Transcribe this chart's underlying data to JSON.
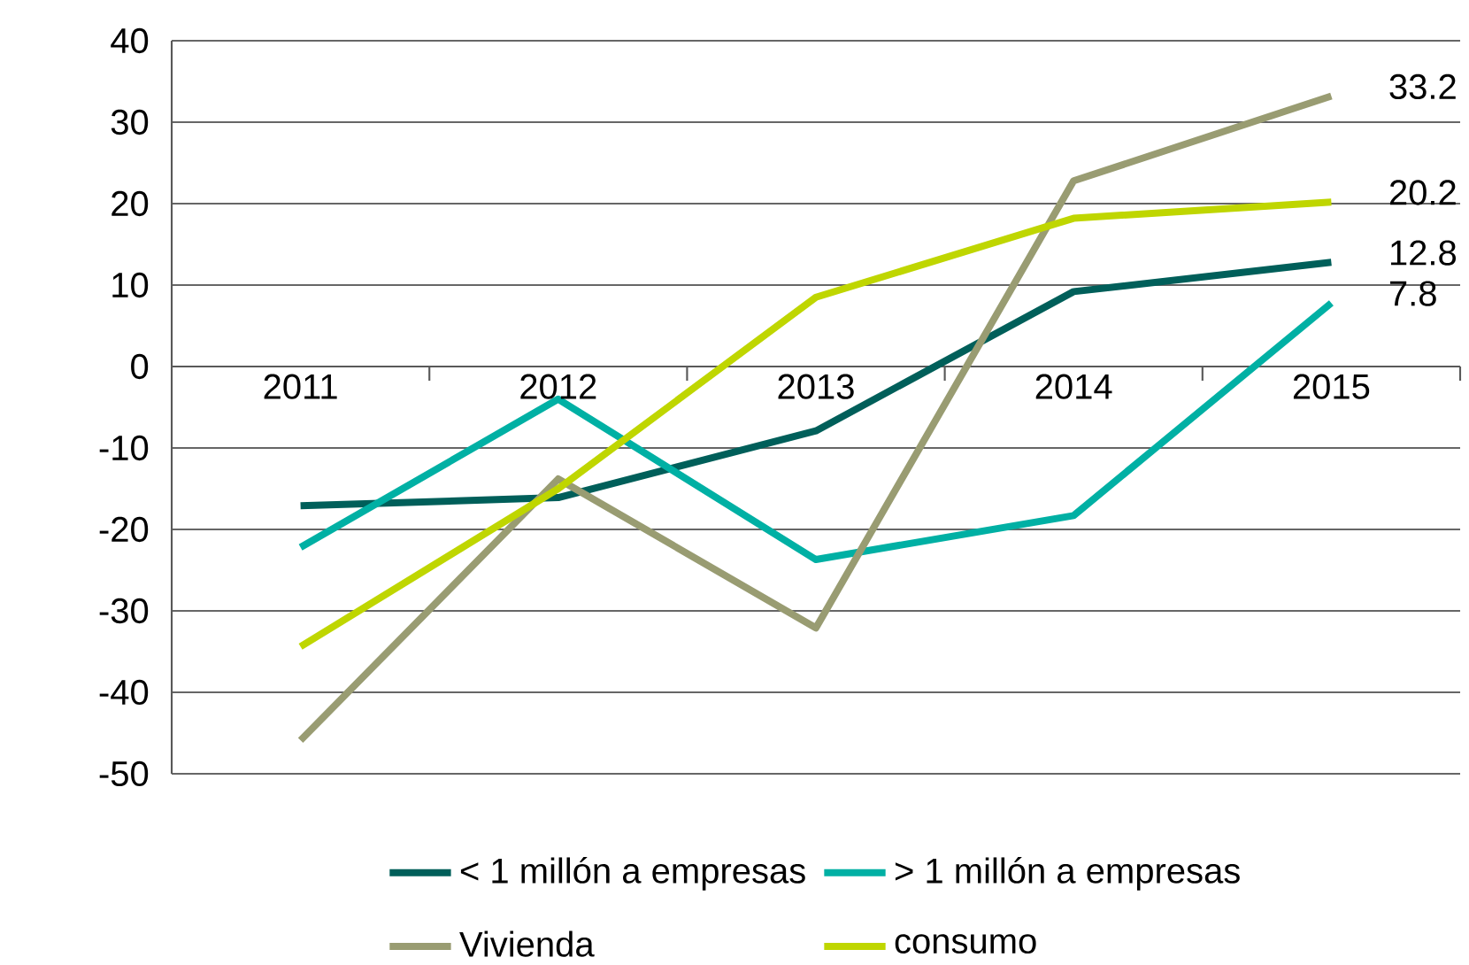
{
  "chart_data": {
    "type": "line",
    "categories": [
      "2011",
      "2012",
      "2013",
      "2014",
      "2015"
    ],
    "series": [
      {
        "name": "< 1 millón a empresas",
        "color": "#005f5a",
        "values": [
          -17.1,
          -16.1,
          -7.9,
          9.2,
          12.8
        ],
        "value_labels": [
          null,
          null,
          null,
          null,
          "12.8"
        ]
      },
      {
        "name": "> 1 millón a empresas",
        "color": "#00b0a4",
        "values": [
          -22.2,
          -4.0,
          -23.7,
          -18.3,
          7.8
        ],
        "value_labels": [
          null,
          null,
          null,
          null,
          "7.8"
        ]
      },
      {
        "name": "Vivienda",
        "color": "#999c72",
        "values": [
          -45.9,
          -13.8,
          -32.1,
          22.8,
          33.2
        ],
        "value_labels": [
          null,
          null,
          null,
          null,
          "33.2"
        ]
      },
      {
        "name": "consumo",
        "color": "#bfd600",
        "values": [
          -34.4,
          -15.0,
          8.5,
          18.2,
          20.2
        ],
        "value_labels": [
          null,
          null,
          null,
          null,
          "20.2"
        ]
      }
    ],
    "ylim": [
      -50,
      40
    ],
    "yticks": [
      -50,
      -40,
      -30,
      -20,
      -10,
      0,
      10,
      20,
      30,
      40
    ],
    "grid": "y",
    "legend": "bottom",
    "marker": "none",
    "line_style": "solid"
  }
}
